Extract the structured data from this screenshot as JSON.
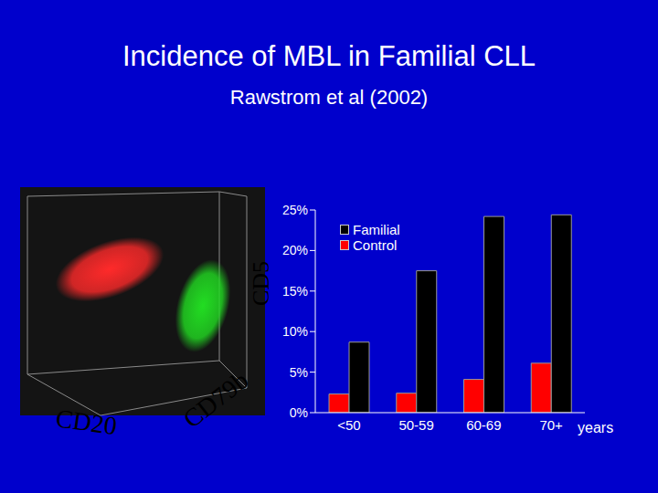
{
  "title": "Incidence of MBL in Familial CLL",
  "subtitle": "Rawstrom et al (2002)",
  "flow_plot": {
    "axis_labels": {
      "x": "CD20",
      "y": "CD79b",
      "z": "CD5"
    },
    "clusters": [
      {
        "color": "#ff2a2a"
      },
      {
        "color": "#22dd22"
      }
    ]
  },
  "chart_data": {
    "type": "bar",
    "categories": [
      "<50",
      "50-59",
      "60-69",
      "70+"
    ],
    "xlabel": "years",
    "series": [
      {
        "name": "Familial",
        "color": "#000000",
        "values": [
          8.7,
          17.5,
          24.2,
          24.4
        ]
      },
      {
        "name": "Control",
        "color": "#ff0000",
        "values": [
          2.3,
          2.4,
          4.1,
          6.1
        ]
      }
    ],
    "ylim": [
      0,
      25
    ],
    "yticks": [
      {
        "value": 0,
        "label": "0%"
      },
      {
        "value": 5,
        "label": "5%"
      },
      {
        "value": 10,
        "label": "10%"
      },
      {
        "value": 15,
        "label": "15%"
      },
      {
        "value": 20,
        "label": "20%"
      },
      {
        "value": 25,
        "label": "25%"
      }
    ],
    "grid": false,
    "legend": "top-left"
  }
}
